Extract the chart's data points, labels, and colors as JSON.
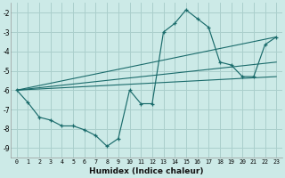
{
  "xlabel": "Humidex (Indice chaleur)",
  "bg_color": "#cceae7",
  "grid_color": "#aacfcc",
  "line_color": "#1a6b6b",
  "xlim": [
    -0.5,
    23.5
  ],
  "ylim": [
    -9.5,
    -1.5
  ],
  "yticks": [
    -9,
    -8,
    -7,
    -6,
    -5,
    -4,
    -3,
    -2
  ],
  "xticks": [
    0,
    1,
    2,
    3,
    4,
    5,
    6,
    7,
    8,
    9,
    10,
    11,
    12,
    13,
    14,
    15,
    16,
    17,
    18,
    19,
    20,
    21,
    22,
    23
  ],
  "main_x": [
    0,
    1,
    2,
    3,
    4,
    5,
    6,
    7,
    8,
    9,
    10,
    11,
    12,
    13,
    14,
    15,
    16,
    17,
    18,
    19,
    20,
    21,
    22,
    23
  ],
  "main_y": [
    -6.0,
    -6.65,
    -7.4,
    -7.55,
    -7.85,
    -7.85,
    -8.05,
    -8.35,
    -8.9,
    -8.5,
    -6.0,
    -6.7,
    -6.7,
    -3.0,
    -2.55,
    -1.85,
    -2.3,
    -2.75,
    -4.55,
    -4.7,
    -5.3,
    -5.3,
    -3.65,
    -3.25
  ],
  "line1_x": [
    0,
    23
  ],
  "line1_y": [
    -6.0,
    -3.25
  ],
  "line2_x": [
    0,
    23
  ],
  "line2_y": [
    -6.0,
    -4.55
  ],
  "line3_x": [
    0,
    23
  ],
  "line3_y": [
    -6.0,
    -5.3
  ]
}
